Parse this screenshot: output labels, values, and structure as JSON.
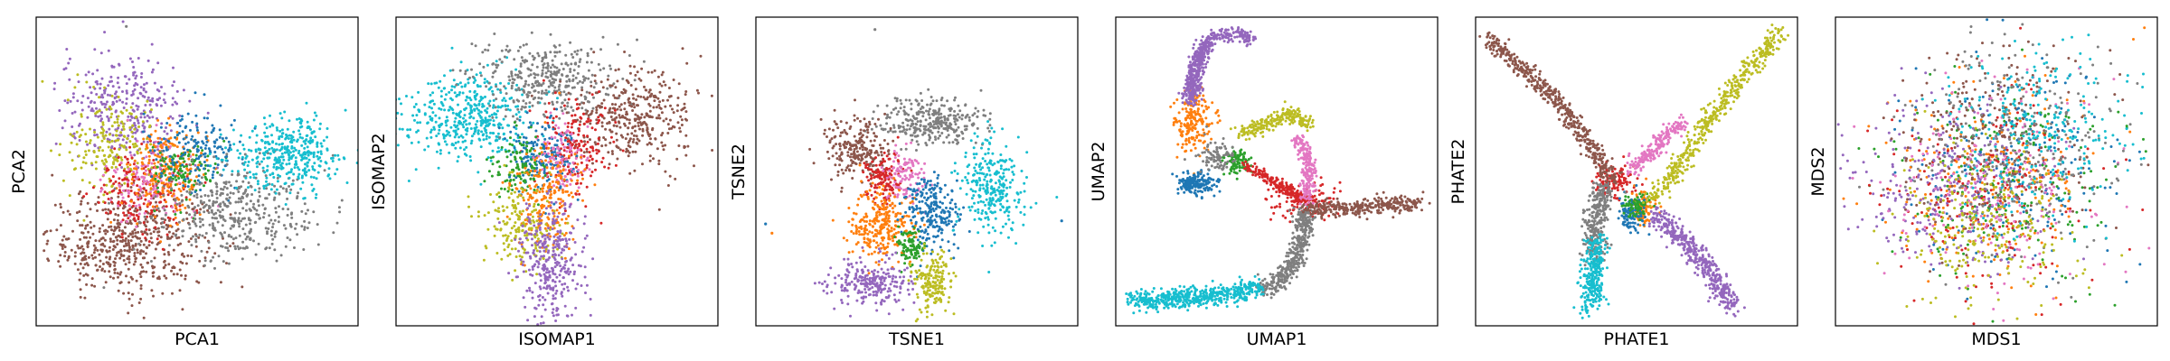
{
  "figure": {
    "background": "#ffffff",
    "palette": [
      "#1f77b4",
      "#ff7f0e",
      "#2ca02c",
      "#d62728",
      "#9467bd",
      "#8c564b",
      "#e377c2",
      "#7f7f7f",
      "#bcbd22",
      "#17becf"
    ]
  },
  "chart_data": [
    {
      "type": "scatter",
      "title": "",
      "xlabel": "PCA1",
      "ylabel": "PCA2",
      "xlim": [
        0,
        100
      ],
      "ylim": [
        0,
        100
      ],
      "ticks": false,
      "grid": false,
      "legend": "none",
      "clusters": [
        {
          "color": "#8c564b",
          "cx": 28,
          "cy": 27,
          "sx": 12,
          "sy": 8,
          "n": 520
        },
        {
          "color": "#9467bd",
          "cx": 27,
          "cy": 70,
          "sx": 10,
          "sy": 9,
          "n": 320
        },
        {
          "color": "#bcbd22",
          "cx": 24,
          "cy": 58,
          "sx": 7,
          "sy": 8,
          "n": 200
        },
        {
          "color": "#d62728",
          "cx": 33,
          "cy": 44,
          "sx": 8,
          "sy": 7,
          "n": 200
        },
        {
          "color": "#e377c2",
          "cx": 35,
          "cy": 47,
          "sx": 6,
          "sy": 6,
          "n": 130
        },
        {
          "color": "#ff7f0e",
          "cx": 41,
          "cy": 50,
          "sx": 6,
          "sy": 7,
          "n": 200
        },
        {
          "color": "#2ca02c",
          "cx": 46,
          "cy": 50,
          "sx": 5,
          "sy": 5,
          "n": 110
        },
        {
          "color": "#1f77b4",
          "cx": 50,
          "cy": 58,
          "sx": 7,
          "sy": 6,
          "n": 160
        },
        {
          "color": "#7f7f7f",
          "cx": 62,
          "cy": 37,
          "sx": 13,
          "sy": 8,
          "n": 420
        },
        {
          "color": "#17becf",
          "cx": 78,
          "cy": 55,
          "sx": 9,
          "sy": 6,
          "n": 380
        }
      ],
      "outliers": [
        {
          "color": "#7f7f7f",
          "x": 28,
          "y": 97
        }
      ]
    },
    {
      "type": "scatter",
      "title": "",
      "xlabel": "ISOMAP1",
      "ylabel": "ISOMAP2",
      "xlim": [
        0,
        100
      ],
      "ylim": [
        0,
        100
      ],
      "ticks": false,
      "grid": false,
      "legend": "none",
      "clusters": [
        {
          "color": "#17becf",
          "cx": 22,
          "cy": 68,
          "sx": 10,
          "sy": 7,
          "n": 440
        },
        {
          "color": "#7f7f7f",
          "cx": 45,
          "cy": 80,
          "sx": 11,
          "sy": 6,
          "n": 360
        },
        {
          "color": "#8c564b",
          "cx": 75,
          "cy": 67,
          "sx": 10,
          "sy": 8,
          "n": 380
        },
        {
          "color": "#d62728",
          "cx": 55,
          "cy": 58,
          "sx": 6,
          "sy": 8,
          "n": 180
        },
        {
          "color": "#1f77b4",
          "cx": 45,
          "cy": 55,
          "sx": 5,
          "sy": 6,
          "n": 180
        },
        {
          "color": "#e377c2",
          "cx": 51,
          "cy": 54,
          "sx": 4,
          "sy": 6,
          "n": 110
        },
        {
          "color": "#2ca02c",
          "cx": 38,
          "cy": 52,
          "sx": 4,
          "sy": 5,
          "n": 110
        },
        {
          "color": "#ff7f0e",
          "cx": 47,
          "cy": 43,
          "sx": 5,
          "sy": 8,
          "n": 220
        },
        {
          "color": "#bcbd22",
          "cx": 38,
          "cy": 32,
          "sx": 6,
          "sy": 7,
          "n": 180
        },
        {
          "color": "#9467bd",
          "cx": 48,
          "cy": 20,
          "sx": 5,
          "sy": 10,
          "n": 320
        }
      ],
      "outliers": []
    },
    {
      "type": "scatter",
      "title": "",
      "xlabel": "TSNE1",
      "ylabel": "TSNE2",
      "xlim": [
        0,
        100
      ],
      "ylim": [
        0,
        100
      ],
      "ticks": false,
      "grid": false,
      "legend": "none",
      "clusters": [
        {
          "color": "#7f7f7f",
          "cx": 55,
          "cy": 66,
          "sx": 8,
          "sy": 4,
          "n": 320
        },
        {
          "color": "#8c564b",
          "cx": 31,
          "cy": 57,
          "sx": 5,
          "sy": 5,
          "n": 230
        },
        {
          "color": "#17becf",
          "cx": 73,
          "cy": 45,
          "sx": 5,
          "sy": 8,
          "n": 280
        },
        {
          "color": "#d62728",
          "cx": 40,
          "cy": 48,
          "sx": 3,
          "sy": 4,
          "n": 140
        },
        {
          "color": "#e377c2",
          "cx": 46,
          "cy": 49,
          "sx": 3,
          "sy": 4,
          "n": 110
        },
        {
          "color": "#ff7f0e",
          "cx": 39,
          "cy": 33,
          "sx": 5,
          "sy": 6,
          "n": 280
        },
        {
          "color": "#1f77b4",
          "cx": 55,
          "cy": 36,
          "sx": 4,
          "sy": 6,
          "n": 240
        },
        {
          "color": "#2ca02c",
          "cx": 48,
          "cy": 26,
          "sx": 2,
          "sy": 3,
          "n": 90
        },
        {
          "color": "#9467bd",
          "cx": 36,
          "cy": 14,
          "sx": 6,
          "sy": 4,
          "n": 240
        },
        {
          "color": "#bcbd22",
          "cx": 55,
          "cy": 14,
          "sx": 3,
          "sy": 5,
          "n": 170
        }
      ],
      "outliers": [
        {
          "color": "#7f7f7f",
          "x": 37,
          "y": 96
        },
        {
          "color": "#1f77b4",
          "x": 3,
          "y": 33
        },
        {
          "color": "#ff7f0e",
          "x": 5,
          "y": 30
        },
        {
          "color": "#1f77b4",
          "x": 95,
          "y": 34
        }
      ]
    },
    {
      "type": "scatter",
      "title": "",
      "xlabel": "UMAP1",
      "ylabel": "UMAP2",
      "xlim": [
        0,
        100
      ],
      "ylim": [
        0,
        100
      ],
      "ticks": false,
      "grid": false,
      "legend": "none",
      "clusters": [
        {
          "color": "#ff7f0e",
          "cx": 24,
          "cy": 66,
          "sx": 3,
          "sy": 5,
          "n": 190
        },
        {
          "color": "#1f77b4",
          "cx": 25,
          "cy": 46,
          "sx": 3,
          "sy": 2,
          "n": 170
        },
        {
          "color": "#2ca02c",
          "cx": 38,
          "cy": 53,
          "sx": 2,
          "sy": 2,
          "n": 90
        },
        {
          "color": "#d62728",
          "cx": 58,
          "cy": 40,
          "sx": 5,
          "sy": 3,
          "n": 130
        },
        {
          "color": "#7f7f7f",
          "cx": 31,
          "cy": 55,
          "sx": 3,
          "sy": 3,
          "n": 80
        }
      ],
      "curves": [
        {
          "color": "#9467bd",
          "width": 2.2,
          "n": 380,
          "points": [
            [
              29,
              93
            ],
            [
              26,
              88
            ],
            [
              24,
              80
            ],
            [
              23,
              73
            ]
          ]
        },
        {
          "color": "#9467bd",
          "width": 1.8,
          "n": 120,
          "points": [
            [
              29,
              93
            ],
            [
              34,
              94
            ],
            [
              39,
              95
            ],
            [
              42,
              92
            ]
          ]
        },
        {
          "color": "#7f7f7f",
          "width": 2.6,
          "n": 420,
          "points": [
            [
              59,
              38
            ],
            [
              58,
              28
            ],
            [
              55,
              20
            ],
            [
              50,
              14
            ],
            [
              45,
              12
            ]
          ]
        },
        {
          "color": "#17becf",
          "width": 2.6,
          "n": 520,
          "points": [
            [
              45,
              12
            ],
            [
              32,
              10
            ],
            [
              20,
              9
            ],
            [
              8,
              8
            ],
            [
              5,
              9
            ]
          ]
        },
        {
          "color": "#8c564b",
          "width": 2.2,
          "n": 320,
          "points": [
            [
              60,
              38
            ],
            [
              72,
              38
            ],
            [
              84,
              39
            ],
            [
              95,
              40
            ]
          ]
        },
        {
          "color": "#bcbd22",
          "width": 1.8,
          "n": 220,
          "points": [
            [
              38,
              62
            ],
            [
              46,
              65
            ],
            [
              55,
              69
            ],
            [
              60,
              65
            ]
          ]
        },
        {
          "color": "#e377c2",
          "width": 1.8,
          "n": 220,
          "points": [
            [
              56,
              61
            ],
            [
              60,
              54
            ],
            [
              60,
              46
            ],
            [
              58,
              40
            ]
          ]
        },
        {
          "color": "#d62728",
          "width": 1.6,
          "n": 160,
          "points": [
            [
              40,
              52
            ],
            [
              47,
              48
            ],
            [
              53,
              44
            ],
            [
              58,
              40
            ]
          ]
        }
      ],
      "outliers": []
    },
    {
      "type": "scatter",
      "title": "",
      "xlabel": "PHATE1",
      "ylabel": "PHATE2",
      "xlim": [
        0,
        100
      ],
      "ylim": [
        0,
        100
      ],
      "ticks": false,
      "grid": false,
      "legend": "none",
      "clusters": [
        {
          "color": "#d62728",
          "cx": 43,
          "cy": 47,
          "sx": 3,
          "sy": 3,
          "n": 110
        },
        {
          "color": "#ff7f0e",
          "cx": 52,
          "cy": 38,
          "sx": 2,
          "sy": 3,
          "n": 110
        },
        {
          "color": "#1f77b4",
          "cx": 48,
          "cy": 36,
          "sx": 2,
          "sy": 3,
          "n": 100
        },
        {
          "color": "#2ca02c",
          "cx": 50,
          "cy": 39,
          "sx": 2,
          "sy": 2,
          "n": 70
        }
      ],
      "curves": [
        {
          "color": "#8c564b",
          "width": 2.4,
          "n": 480,
          "points": [
            [
              4,
              93
            ],
            [
              14,
              84
            ],
            [
              26,
              72
            ],
            [
              36,
              58
            ],
            [
              43,
              47
            ]
          ]
        },
        {
          "color": "#bcbd22",
          "width": 2.4,
          "n": 460,
          "points": [
            [
              95,
              96
            ],
            [
              84,
              82
            ],
            [
              72,
              66
            ],
            [
              62,
              50
            ],
            [
              55,
              41
            ]
          ]
        },
        {
          "color": "#e377c2",
          "width": 2.0,
          "n": 200,
          "points": [
            [
              65,
              67
            ],
            [
              56,
              58
            ],
            [
              48,
              50
            ]
          ]
        },
        {
          "color": "#9467bd",
          "width": 2.8,
          "n": 420,
          "points": [
            [
              56,
              36
            ],
            [
              64,
              28
            ],
            [
              73,
              18
            ],
            [
              80,
              5
            ]
          ]
        },
        {
          "color": "#7f7f7f",
          "width": 3.2,
          "n": 300,
          "points": [
            [
              40,
              45
            ],
            [
              38,
              38
            ],
            [
              37,
              30
            ],
            [
              37,
              22
            ]
          ]
        },
        {
          "color": "#17becf",
          "width": 2.8,
          "n": 280,
          "points": [
            [
              38,
              28
            ],
            [
              37,
              20
            ],
            [
              36,
              12
            ],
            [
              36,
              6
            ]
          ]
        }
      ],
      "outliers": []
    },
    {
      "type": "scatter",
      "title": "",
      "xlabel": "MDS1",
      "ylabel": "MDS2",
      "xlim": [
        0,
        100
      ],
      "ylim": [
        0,
        100
      ],
      "ticks": false,
      "grid": false,
      "legend": "none",
      "clusters": [
        {
          "color": "#1f77b4",
          "cx": 52,
          "cy": 52,
          "sx": 17,
          "sy": 17,
          "n": 220
        },
        {
          "color": "#ff7f0e",
          "cx": 48,
          "cy": 50,
          "sx": 17,
          "sy": 17,
          "n": 220
        },
        {
          "color": "#2ca02c",
          "cx": 50,
          "cy": 48,
          "sx": 17,
          "sy": 17,
          "n": 200
        },
        {
          "color": "#d62728",
          "cx": 47,
          "cy": 42,
          "sx": 16,
          "sy": 16,
          "n": 220
        },
        {
          "color": "#9467bd",
          "cx": 36,
          "cy": 45,
          "sx": 15,
          "sy": 14,
          "n": 280
        },
        {
          "color": "#8c564b",
          "cx": 50,
          "cy": 62,
          "sx": 16,
          "sy": 15,
          "n": 240
        },
        {
          "color": "#e377c2",
          "cx": 50,
          "cy": 45,
          "sx": 17,
          "sy": 17,
          "n": 200
        },
        {
          "color": "#7f7f7f",
          "cx": 58,
          "cy": 58,
          "sx": 16,
          "sy": 16,
          "n": 260
        },
        {
          "color": "#bcbd22",
          "cx": 45,
          "cy": 33,
          "sx": 15,
          "sy": 13,
          "n": 240
        },
        {
          "color": "#17becf",
          "cx": 63,
          "cy": 64,
          "sx": 14,
          "sy": 14,
          "n": 260
        }
      ],
      "outliers": []
    }
  ]
}
